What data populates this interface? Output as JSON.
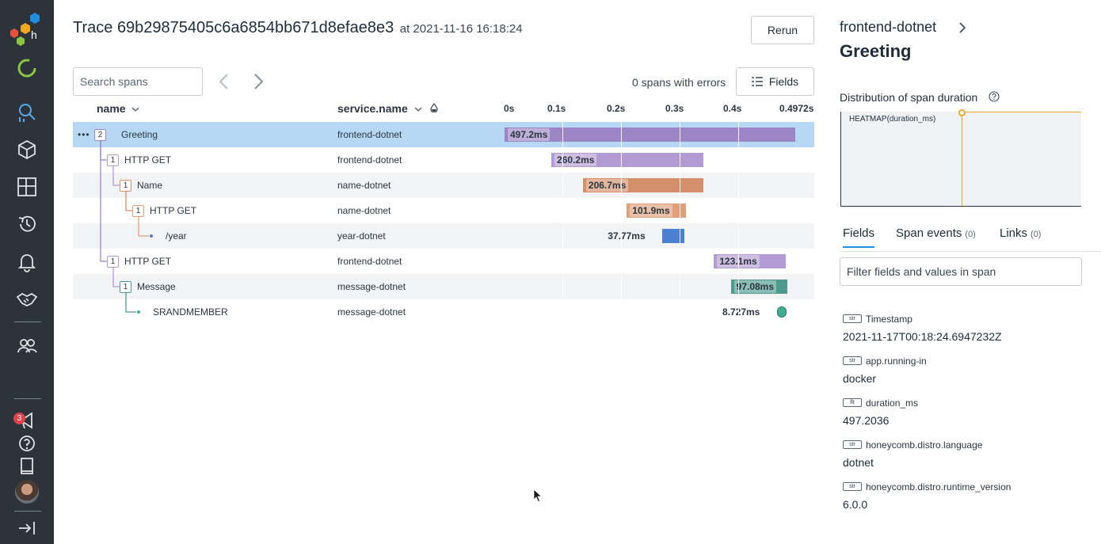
{
  "nav": {
    "items": [
      {
        "icon": "loading-ring-icon"
      },
      {
        "icon": "query-search-icon"
      },
      {
        "icon": "datasets-cube-icon"
      },
      {
        "icon": "boards-grid-icon"
      },
      {
        "icon": "history-icon"
      },
      {
        "icon": "triggers-bell-icon"
      },
      {
        "icon": "slo-handshake-icon"
      },
      {
        "icon": "team-icon"
      }
    ],
    "notification_count": "3",
    "bottom": [
      {
        "icon": "announcements-megaphone-icon"
      },
      {
        "icon": "help-icon"
      },
      {
        "icon": "docs-book-icon"
      },
      {
        "icon": "expand-sidebar-icon"
      }
    ]
  },
  "header": {
    "trace_label": "Trace 69b29875405c6a6854bb671d8efae8e3",
    "at_label": "at 2021-11-16 16:18:24",
    "rerun": "Rerun"
  },
  "toolbar": {
    "search_placeholder": "Search spans",
    "errors_text": "0 spans with errors",
    "fields_label": "Fields"
  },
  "table": {
    "col_name": "name",
    "col_service": "service.name",
    "ticks": [
      "0s",
      "0.1s",
      "0.2s",
      "0.3s",
      "0.4s",
      "0.4972s"
    ],
    "total_ms": 497.2,
    "spans": [
      {
        "name": "Greeting",
        "service": "frontend-dotnet",
        "duration": "497.2ms",
        "start_ms": 0,
        "duration_ms": 497.2,
        "children": "2",
        "color": "#9b85c4",
        "depth": 0
      },
      {
        "name": "HTTP GET",
        "service": "frontend-dotnet",
        "duration": "260.2ms",
        "start_ms": 80.0,
        "duration_ms": 260.2,
        "children": "1",
        "color": "#b29bd3",
        "depth": 1
      },
      {
        "name": "Name",
        "service": "name-dotnet",
        "duration": "206.7ms",
        "start_ms": 134.0,
        "duration_ms": 206.7,
        "children": "1",
        "color": "#d4906a",
        "depth": 2
      },
      {
        "name": "HTTP GET",
        "service": "name-dotnet",
        "duration": "101.9ms",
        "start_ms": 209.0,
        "duration_ms": 101.9,
        "children": "1",
        "color": "#dfa07a",
        "depth": 3
      },
      {
        "name": "/year",
        "service": "year-dotnet",
        "duration": "37.77ms",
        "start_ms": 270.0,
        "duration_ms": 37.77,
        "children": "",
        "color": "#4a7fd4",
        "depth": 4
      },
      {
        "name": "HTTP GET",
        "service": "frontend-dotnet",
        "duration": "123.1ms",
        "start_ms": 358.0,
        "duration_ms": 123.1,
        "children": "1",
        "color": "#b29bd3",
        "depth": 1
      },
      {
        "name": "Message",
        "service": "message-dotnet",
        "duration": "97.08ms",
        "start_ms": 387.0,
        "duration_ms": 97.08,
        "children": "1",
        "color": "#4f9a8e",
        "depth": 2
      },
      {
        "name": "SRANDMEMBER",
        "service": "message-dotnet",
        "duration": "8.727ms",
        "start_ms": 466.0,
        "duration_ms": 8.727,
        "children": "",
        "color": "#3fae92",
        "depth": 3
      }
    ]
  },
  "panel": {
    "service": "frontend-dotnet",
    "title": "Greeting",
    "distribution_label": "Distribution of span duration",
    "heatmap_label": "HEATMAP(duration_ms)",
    "tabs": [
      {
        "label": "Fields",
        "count": ""
      },
      {
        "label": "Span events",
        "count": "(0)"
      },
      {
        "label": "Links",
        "count": "(0)"
      }
    ],
    "filter_placeholder": "Filter fields and values in span",
    "fields": [
      {
        "type": "str",
        "name": "Timestamp",
        "value": "2021-11-17T00:18:24.6947232Z"
      },
      {
        "type": "str",
        "name": "app.running-in",
        "value": "docker"
      },
      {
        "type": "flt",
        "name": "duration_ms",
        "value": "497.2036"
      },
      {
        "type": "str",
        "name": "honeycomb.distro.language",
        "value": "dotnet"
      },
      {
        "type": "str",
        "name": "honeycomb.distro.runtime_version",
        "value": "6.0.0"
      }
    ]
  }
}
